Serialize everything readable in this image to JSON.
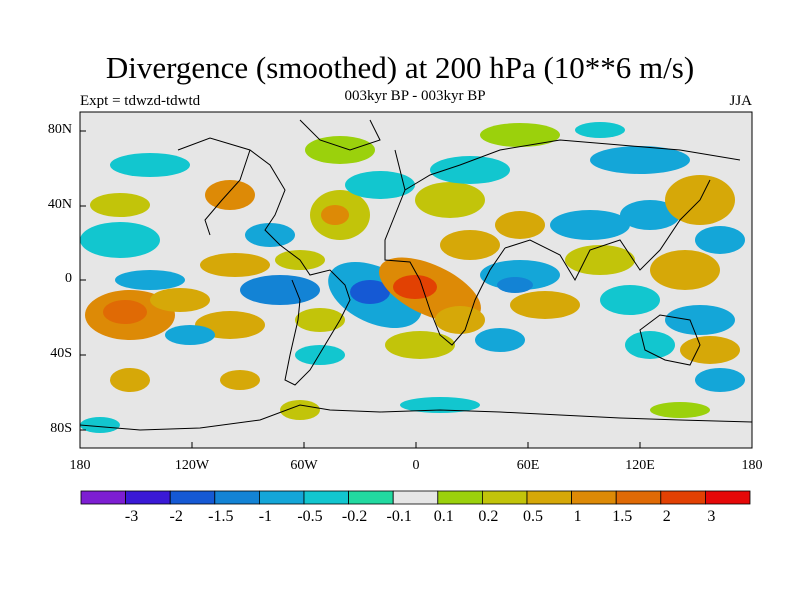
{
  "header": {
    "title": "Divergence (smoothed) at 200 hPa (10**6 m/s)",
    "subtitle": "003kyr BP - 003kyr BP",
    "experiment": "Expt = tdwzd-tdwtd",
    "season": "JJA"
  },
  "axes": {
    "lat_labels": [
      "80N",
      "40N",
      "0",
      "40S",
      "80S"
    ],
    "lon_labels": [
      "180",
      "120W",
      "60W",
      "0",
      "60E",
      "120E",
      "180"
    ]
  },
  "colorbar": {
    "colors": [
      "#7d1ed2",
      "#3a19d6",
      "#1559d4",
      "#1383d5",
      "#14a6d8",
      "#12c6cf",
      "#22d9a0",
      "#e6e6e6",
      "#9bd10c",
      "#c2c40a",
      "#d6a808",
      "#dd8a06",
      "#e06a05",
      "#e24103",
      "#e50808"
    ],
    "labels": [
      "-3",
      "-2",
      "-1.5",
      "-1",
      "-0.5",
      "-0.2",
      "-0.1",
      "0.1",
      "0.2",
      "0.5",
      "1",
      "1.5",
      "2",
      "3"
    ]
  }
}
